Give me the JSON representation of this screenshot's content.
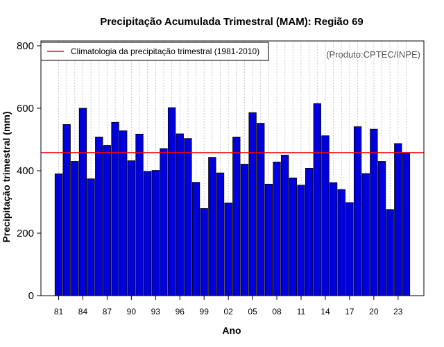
{
  "chart_data": {
    "type": "bar",
    "title": "Precipitação Acumulada Trimestral (MAM): Região 69",
    "xlabel": "Ano",
    "ylabel": "Precipitação trimestral (mm)",
    "ylim": [
      0,
      800
    ],
    "yticks": [
      0,
      200,
      400,
      600,
      800
    ],
    "grid": "vertical dotted",
    "legend_position": "top-left",
    "source_note": "(Produto:CPTEC/INPE)",
    "years": [
      1981,
      1982,
      1983,
      1984,
      1985,
      1986,
      1987,
      1988,
      1989,
      1990,
      1991,
      1992,
      1993,
      1994,
      1995,
      1996,
      1997,
      1998,
      1999,
      2000,
      2001,
      2002,
      2003,
      2004,
      2005,
      2006,
      2007,
      2008,
      2009,
      2010,
      2011,
      2012,
      2013,
      2014,
      2015,
      2016,
      2017,
      2018,
      2019,
      2020,
      2021,
      2022,
      2023,
      2024
    ],
    "tick_labels": [
      "81",
      "84",
      "87",
      "90",
      "93",
      "96",
      "99",
      "02",
      "05",
      "08",
      "11",
      "14",
      "17",
      "20",
      "23"
    ],
    "tick_years": [
      1981,
      1984,
      1987,
      1990,
      1993,
      1996,
      1999,
      2002,
      2005,
      2008,
      2011,
      2014,
      2017,
      2020,
      2023
    ],
    "values": [
      390,
      548,
      430,
      600,
      374,
      508,
      481,
      555,
      528,
      432,
      517,
      398,
      401,
      471,
      602,
      518,
      503,
      363,
      279,
      443,
      393,
      297,
      508,
      421,
      586,
      552,
      357,
      428,
      450,
      377,
      354,
      408,
      615,
      512,
      362,
      340,
      298,
      541,
      391,
      533,
      430,
      276,
      487,
      457
    ],
    "bar_color": "#0000dd",
    "climatology": {
      "label": "Climatologia da precipitação trimestral (1981-2010)",
      "value": 458,
      "color": "#ff0000"
    }
  }
}
